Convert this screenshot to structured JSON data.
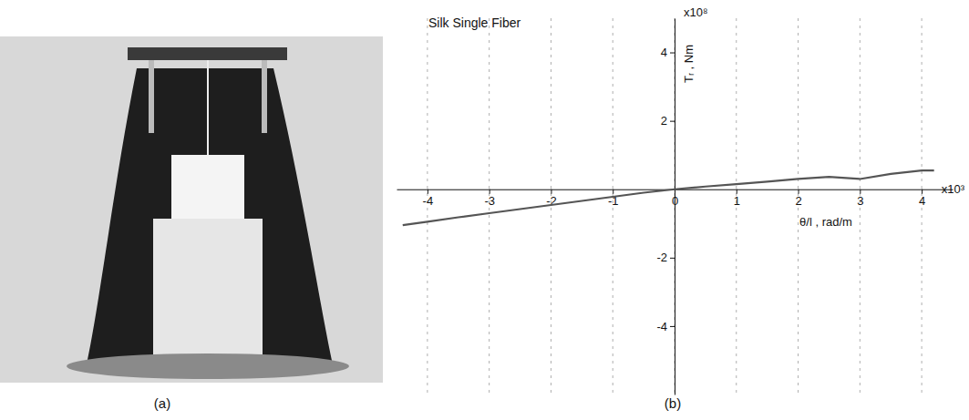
{
  "panel_labels": [
    "(a)",
    "(b)"
  ],
  "chart_data": {
    "type": "line",
    "title": "Silk Single Fiber",
    "x_label": "θ/l , rad/m",
    "y_label": "Tᵣ , Nm",
    "x_multiplier": "x10³",
    "y_multiplier": "x10⁸",
    "xlim": [
      -4.5,
      4.5
    ],
    "ylim": [
      -6,
      5
    ],
    "xticks": [
      -4,
      -3,
      -2,
      -1,
      0,
      1,
      2,
      3,
      4
    ],
    "yticks": [
      -4,
      -2,
      2,
      4
    ],
    "grid": true,
    "series": [
      {
        "name": "Silk Single Fiber",
        "color": "#555555",
        "x": [
          -4.4,
          -4.0,
          -3.5,
          -3.0,
          -2.5,
          -2.0,
          -1.5,
          -1.0,
          -0.5,
          0,
          0.5,
          1.0,
          1.5,
          2.0,
          2.5,
          3.0,
          3.5,
          4.0,
          4.2
        ],
        "values": [
          -1.05,
          -0.95,
          -0.82,
          -0.7,
          -0.58,
          -0.46,
          -0.34,
          -0.22,
          -0.1,
          0,
          0.08,
          0.15,
          0.22,
          0.3,
          0.36,
          0.3,
          0.45,
          0.55,
          0.55
        ]
      }
    ]
  }
}
